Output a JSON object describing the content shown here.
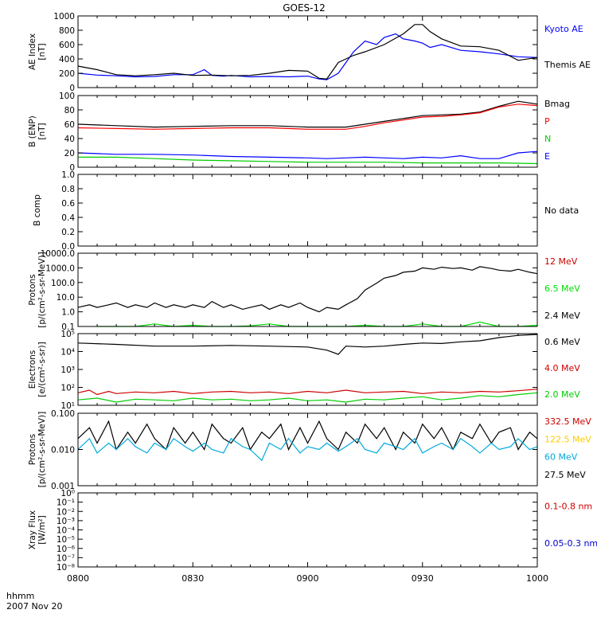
{
  "figure": {
    "title": "GOES-12",
    "xaxis_label": "hhmm",
    "date_label": "2007 Nov 20",
    "x_ticks": [
      "0800",
      "0830",
      "0900",
      "0930",
      "1000"
    ]
  },
  "chart_data": [
    {
      "id": "ae",
      "type": "line",
      "ylabel": [
        "AE Index",
        "[nT]"
      ],
      "ylim": [
        0,
        1000
      ],
      "yscale": "linear",
      "yticks": [
        "0",
        "200",
        "400",
        "600",
        "800",
        "1000"
      ],
      "xlim": [
        0,
        120
      ],
      "series": [
        {
          "name": "Kyoto AE",
          "color": "#0000ff",
          "x": [
            0,
            5,
            10,
            15,
            20,
            25,
            30,
            33,
            35,
            38,
            40,
            45,
            50,
            55,
            60,
            63,
            65,
            68,
            70,
            72,
            75,
            78,
            80,
            83,
            85,
            88,
            90,
            92,
            95,
            100,
            105,
            110,
            115,
            120
          ],
          "y": [
            200,
            175,
            165,
            150,
            155,
            180,
            180,
            250,
            170,
            160,
            170,
            150,
            155,
            150,
            160,
            120,
            110,
            200,
            350,
            500,
            650,
            600,
            700,
            750,
            680,
            650,
            620,
            560,
            600,
            520,
            500,
            470,
            430,
            420
          ]
        },
        {
          "name": "Themis AE",
          "color": "#000000",
          "x": [
            0,
            5,
            10,
            15,
            20,
            25,
            30,
            35,
            40,
            45,
            50,
            55,
            60,
            63,
            65,
            68,
            70,
            72,
            75,
            80,
            85,
            88,
            90,
            92,
            95,
            100,
            105,
            110,
            115,
            120
          ],
          "y": [
            300,
            250,
            180,
            165,
            180,
            200,
            170,
            175,
            165,
            170,
            200,
            240,
            230,
            130,
            120,
            350,
            400,
            450,
            500,
            600,
            750,
            880,
            880,
            780,
            680,
            580,
            570,
            520,
            380,
            420
          ]
        }
      ]
    },
    {
      "id": "bfield",
      "type": "line",
      "ylabel": [
        "B (ENP)",
        "[nT]"
      ],
      "ylim": [
        0,
        100
      ],
      "yscale": "linear",
      "yticks": [
        "0",
        "20",
        "40",
        "60",
        "80",
        "100"
      ],
      "xlim": [
        0,
        120
      ],
      "series": [
        {
          "name": "Bmag",
          "color": "#000000",
          "x": [
            0,
            10,
            20,
            30,
            40,
            50,
            60,
            70,
            75,
            80,
            85,
            90,
            95,
            100,
            105,
            110,
            115,
            120
          ],
          "y": [
            60,
            58,
            56,
            57,
            58,
            58,
            56,
            56,
            60,
            64,
            68,
            72,
            73,
            74,
            77,
            85,
            92,
            88
          ]
        },
        {
          "name": "P",
          "color": "#ff0000",
          "x": [
            0,
            10,
            20,
            30,
            40,
            50,
            60,
            70,
            75,
            80,
            85,
            90,
            95,
            100,
            105,
            110,
            115,
            120
          ],
          "y": [
            55,
            54,
            53,
            54,
            55,
            55,
            53,
            53,
            57,
            62,
            66,
            70,
            71,
            73,
            76,
            84,
            88,
            86
          ]
        },
        {
          "name": "N",
          "color": "#00cc00",
          "x": [
            0,
            10,
            20,
            30,
            40,
            50,
            60,
            70,
            80,
            90,
            100,
            110,
            120
          ],
          "y": [
            14,
            14,
            12,
            10,
            9,
            8,
            7,
            7,
            7,
            6,
            6,
            6,
            5
          ]
        },
        {
          "name": "E",
          "color": "#0000ff",
          "x": [
            0,
            5,
            10,
            20,
            30,
            40,
            50,
            60,
            65,
            70,
            75,
            80,
            85,
            90,
            95,
            100,
            105,
            110,
            115,
            120
          ],
          "y": [
            20,
            19,
            18,
            18,
            17,
            15,
            14,
            13,
            12,
            13,
            14,
            13,
            12,
            14,
            13,
            16,
            12,
            12,
            20,
            22
          ]
        }
      ]
    },
    {
      "id": "bcomp",
      "type": "line",
      "ylabel": [
        "B comp"
      ],
      "ylim": [
        0,
        1
      ],
      "yscale": "linear",
      "yticks": [
        "0.0",
        "0.2",
        "0.4",
        "0.6",
        "0.8",
        "1.0"
      ],
      "xlim": [
        0,
        120
      ],
      "no_data_label": "No data",
      "series": []
    },
    {
      "id": "protons_low",
      "type": "line",
      "ylabel": [
        "Protons",
        "[p/(cm²-s-sr-MeV)]"
      ],
      "ylim": [
        0.1,
        10000
      ],
      "yscale": "log",
      "yticks": [
        "0.1",
        "1.0",
        "10.0",
        "100.0",
        "1000.0",
        "10000.0"
      ],
      "xlim": [
        0,
        120
      ],
      "legend": [
        {
          "name": "12 MeV",
          "color": "#cc0000"
        },
        {
          "name": "6.5 MeV",
          "color": "#00dd00"
        },
        {
          "name": "2.4 MeV",
          "color": "#000000"
        }
      ],
      "series": [
        {
          "name": "2.4 MeV",
          "color": "#000000",
          "x": [
            0,
            3,
            5,
            8,
            10,
            13,
            15,
            18,
            20,
            23,
            25,
            28,
            30,
            33,
            35,
            38,
            40,
            43,
            45,
            48,
            50,
            53,
            55,
            58,
            60,
            63,
            65,
            68,
            70,
            73,
            75,
            78,
            80,
            83,
            85,
            88,
            90,
            93,
            95,
            98,
            100,
            103,
            105,
            108,
            110,
            113,
            115,
            118,
            120
          ],
          "y": [
            2,
            3,
            2,
            3,
            4,
            2,
            3,
            2,
            4,
            2,
            3,
            2,
            3,
            2,
            5,
            2,
            3,
            1.5,
            2,
            3,
            1.5,
            3,
            2,
            4,
            2,
            1,
            2,
            1.5,
            3,
            8,
            30,
            90,
            200,
            300,
            500,
            600,
            1000,
            800,
            1100,
            900,
            1000,
            700,
            1200,
            900,
            700,
            600,
            800,
            500,
            400
          ]
        },
        {
          "name": "6.5 MeV",
          "color": "#00dd00",
          "x": [
            5,
            10,
            15,
            20,
            25,
            30,
            35,
            40,
            45,
            50,
            55,
            60,
            65,
            70,
            75,
            80,
            85,
            90,
            95,
            100,
            105,
            110,
            115,
            120
          ],
          "y": [
            0.1,
            0.1,
            0.1,
            0.15,
            0.1,
            0.12,
            0.1,
            0.1,
            0.11,
            0.15,
            0.1,
            0.1,
            0.1,
            0.1,
            0.12,
            0.1,
            0.1,
            0.15,
            0.1,
            0.1,
            0.2,
            0.1,
            0.1,
            0.12
          ]
        }
      ]
    },
    {
      "id": "electrons",
      "type": "line",
      "ylabel": [
        "Electrons",
        "[e/(cm²-s-sr)]"
      ],
      "ylim": [
        10,
        100000
      ],
      "yscale": "log",
      "yticks": [
        "10¹",
        "10²",
        "10³",
        "10⁴",
        "10⁵"
      ],
      "xlim": [
        0,
        120
      ],
      "series": [
        {
          "name": "0.6 MeV",
          "color": "#000000",
          "x": [
            0,
            10,
            20,
            30,
            40,
            50,
            60,
            65,
            68,
            70,
            75,
            80,
            85,
            90,
            95,
            100,
            105,
            110,
            115,
            120
          ],
          "y": [
            30000,
            25000,
            20000,
            20000,
            22000,
            20000,
            18000,
            12000,
            7000,
            20000,
            18000,
            20000,
            25000,
            30000,
            28000,
            35000,
            40000,
            60000,
            80000,
            90000
          ]
        },
        {
          "name": "4.0 MeV",
          "color": "#cc0000",
          "x": [
            0,
            3,
            5,
            8,
            10,
            15,
            20,
            25,
            30,
            35,
            40,
            45,
            50,
            55,
            60,
            65,
            70,
            75,
            80,
            85,
            90,
            95,
            100,
            105,
            110,
            115,
            120
          ],
          "y": [
            50,
            70,
            40,
            60,
            45,
            55,
            50,
            60,
            45,
            55,
            60,
            50,
            55,
            45,
            60,
            50,
            70,
            50,
            55,
            60,
            45,
            55,
            50,
            60,
            55,
            65,
            80
          ]
        },
        {
          "name": "2.0 MeV",
          "color": "#00cc00",
          "x": [
            0,
            5,
            10,
            15,
            20,
            25,
            30,
            35,
            40,
            45,
            50,
            55,
            60,
            65,
            70,
            75,
            80,
            85,
            90,
            95,
            100,
            105,
            110,
            115,
            120
          ],
          "y": [
            20,
            25,
            15,
            22,
            20,
            18,
            25,
            20,
            22,
            18,
            20,
            25,
            18,
            20,
            15,
            22,
            20,
            25,
            30,
            20,
            25,
            35,
            30,
            40,
            50
          ]
        }
      ]
    },
    {
      "id": "protons_high",
      "type": "line",
      "ylabel": [
        "Protons",
        "[p/(cm²-s-sr-MeV)]"
      ],
      "ylim": [
        0.001,
        0.1
      ],
      "yscale": "log",
      "yticks": [
        "0.001",
        "0.010",
        "0.100"
      ],
      "xlim": [
        0,
        120
      ],
      "legend": [
        {
          "name": "332.5 MeV",
          "color": "#cc0000"
        },
        {
          "name": "122.5 MeV",
          "color": "#ffcc00"
        },
        {
          "name": "60 MeV",
          "color": "#00aadd"
        },
        {
          "name": "27.5 MeV",
          "color": "#000000"
        }
      ],
      "series": [
        {
          "name": "27.5 MeV",
          "color": "#000000",
          "x": [
            0,
            3,
            5,
            8,
            10,
            13,
            15,
            18,
            20,
            23,
            25,
            28,
            30,
            33,
            35,
            38,
            40,
            43,
            45,
            48,
            50,
            53,
            55,
            58,
            60,
            63,
            65,
            68,
            70,
            73,
            75,
            78,
            80,
            83,
            85,
            88,
            90,
            93,
            95,
            98,
            100,
            103,
            105,
            108,
            110,
            113,
            115,
            118,
            120
          ],
          "y": [
            0.02,
            0.04,
            0.015,
            0.06,
            0.01,
            0.03,
            0.015,
            0.05,
            0.02,
            0.01,
            0.04,
            0.015,
            0.03,
            0.01,
            0.05,
            0.02,
            0.015,
            0.04,
            0.01,
            0.03,
            0.02,
            0.05,
            0.01,
            0.04,
            0.015,
            0.06,
            0.02,
            0.01,
            0.03,
            0.015,
            0.05,
            0.02,
            0.04,
            0.01,
            0.03,
            0.015,
            0.05,
            0.02,
            0.04,
            0.01,
            0.03,
            0.02,
            0.05,
            0.015,
            0.03,
            0.04,
            0.01,
            0.03,
            0.02
          ]
        },
        {
          "name": "60 MeV",
          "color": "#00aadd",
          "x": [
            0,
            3,
            5,
            8,
            10,
            13,
            15,
            18,
            20,
            23,
            25,
            28,
            30,
            33,
            35,
            38,
            40,
            43,
            45,
            48,
            50,
            53,
            55,
            58,
            60,
            63,
            65,
            68,
            70,
            73,
            75,
            78,
            80,
            83,
            85,
            88,
            90,
            93,
            95,
            98,
            100,
            103,
            105,
            108,
            110,
            113,
            115,
            118,
            120
          ],
          "y": [
            0.01,
            0.02,
            0.008,
            0.015,
            0.01,
            0.02,
            0.012,
            0.008,
            0.015,
            0.01,
            0.02,
            0.012,
            0.009,
            0.015,
            0.01,
            0.008,
            0.02,
            0.012,
            0.01,
            0.005,
            0.015,
            0.01,
            0.02,
            0.008,
            0.012,
            0.01,
            0.015,
            0.009,
            0.012,
            0.02,
            0.01,
            0.008,
            0.015,
            0.012,
            0.01,
            0.02,
            0.008,
            0.012,
            0.015,
            0.01,
            0.02,
            0.012,
            0.008,
            0.015,
            0.01,
            0.012,
            0.02,
            0.01,
            0.012
          ]
        }
      ]
    },
    {
      "id": "xray",
      "type": "line",
      "ylabel": [
        "Xray  Flux",
        "[W/m²]"
      ],
      "ylim": [
        1e-08,
        1
      ],
      "yscale": "log",
      "yticks": [
        "10⁻⁸",
        "10⁻⁷",
        "10⁻⁶",
        "10⁻⁵",
        "10⁻⁴",
        "10⁻³",
        "10⁻²",
        "10⁻¹",
        "10⁰"
      ],
      "xlim": [
        0,
        120
      ],
      "legend": [
        {
          "name": "0.1-0.8 nm",
          "color": "#cc0000"
        },
        {
          "name": "0.05-0.3 nm",
          "color": "#0000cc"
        }
      ],
      "series": []
    }
  ]
}
